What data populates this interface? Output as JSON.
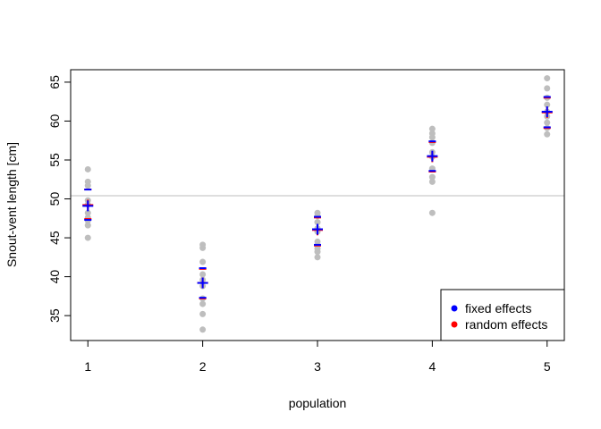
{
  "chart_data": {
    "type": "scatter",
    "title": "",
    "xlabel": "population",
    "ylabel": "Snout-vent length [cm]",
    "xlim": [
      0.85,
      5.15
    ],
    "ylim": [
      31.8,
      66.6
    ],
    "x_ticks": [
      1,
      2,
      3,
      4,
      5
    ],
    "y_ticks": [
      35,
      40,
      45,
      50,
      55,
      60,
      65
    ],
    "reference_line_y": 50.4,
    "grid": false,
    "legend_position": "bottom-right",
    "colors": {
      "observations": "#bebebe",
      "fixed_effects": "#0000ff",
      "random_effects": "#ff0000",
      "reference_line": "#bebebe"
    },
    "observations": [
      {
        "population": 1,
        "values": [
          53.8,
          52.2,
          51.7,
          49.8,
          49.3,
          48.2,
          47.6,
          47.2,
          46.6,
          45.0
        ]
      },
      {
        "population": 2,
        "values": [
          44.1,
          43.7,
          41.9,
          40.3,
          39.6,
          38.8,
          37.2,
          36.5,
          35.2,
          33.2
        ]
      },
      {
        "population": 3,
        "values": [
          48.2,
          47.8,
          47.0,
          46.2,
          45.8,
          44.5,
          44.0,
          43.6,
          43.2,
          42.5
        ]
      },
      {
        "population": 4,
        "values": [
          59.0,
          58.4,
          57.9,
          57.2,
          56.0,
          55.4,
          53.9,
          52.8,
          52.2,
          48.2
        ]
      },
      {
        "population": 5,
        "values": [
          65.5,
          64.2,
          63.0,
          62.1,
          61.2,
          60.6,
          59.8,
          59.1,
          58.3
        ]
      }
    ],
    "series": [
      {
        "name": "fixed effects",
        "color": "#0000ff",
        "means": [
          49.1,
          39.2,
          46.1,
          55.5,
          61.2
        ],
        "ci_upper": [
          51.2,
          41.1,
          47.7,
          57.4,
          63.1
        ],
        "ci_lower": [
          47.3,
          37.3,
          44.1,
          53.6,
          59.2
        ]
      },
      {
        "name": "random effects",
        "color": "#ff0000",
        "means": [
          49.3,
          39.3,
          46.1,
          55.5,
          61.2
        ],
        "ci_upper": [
          51.3,
          41.1,
          47.7,
          57.4,
          63.1
        ],
        "ci_lower": [
          47.5,
          37.3,
          44.1,
          53.6,
          59.2
        ]
      }
    ],
    "legend": [
      "fixed effects",
      "random effects"
    ]
  }
}
